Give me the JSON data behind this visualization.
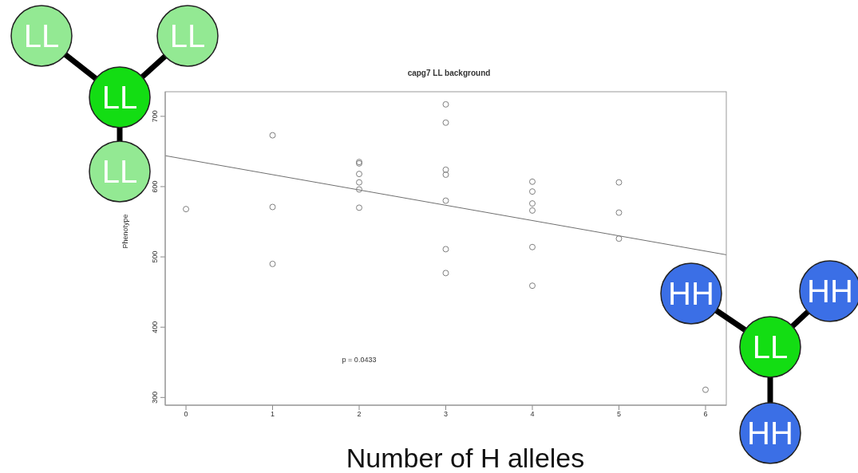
{
  "chart_data": {
    "type": "scatter",
    "title": "capg7 LL background",
    "xlabel": "Number of H alleles",
    "ylabel": "Phenotype",
    "annotations": [
      "p = 0.0433",
      "LL",
      "HH"
    ],
    "xlim": [
      -0.24,
      6.24
    ],
    "xticks": [
      0,
      1,
      2,
      3,
      4,
      5,
      6
    ],
    "ylim": [
      289,
      735
    ],
    "yticks": [
      300,
      400,
      500,
      600,
      700
    ],
    "series": [
      {
        "marker": "circle",
        "color": "#7f7f7f",
        "x": [
          0,
          1,
          1,
          1,
          2,
          2,
          2,
          2,
          2,
          2,
          3,
          3,
          3,
          3,
          3,
          3,
          3,
          4,
          4,
          4,
          4,
          4,
          4,
          5,
          5,
          5,
          6
        ],
        "values": [
          568,
          673,
          571,
          490,
          635,
          633,
          618,
          606,
          596,
          570,
          717,
          691,
          624,
          617,
          580,
          511,
          477,
          607,
          593,
          576,
          566,
          514,
          459,
          606,
          563,
          526,
          311
        ]
      },
      {
        "type": "line",
        "color": "#6f6f6f",
        "x": [
          -0.24,
          6.24
        ],
        "values": [
          644,
          503
        ]
      }
    ]
  }
}
